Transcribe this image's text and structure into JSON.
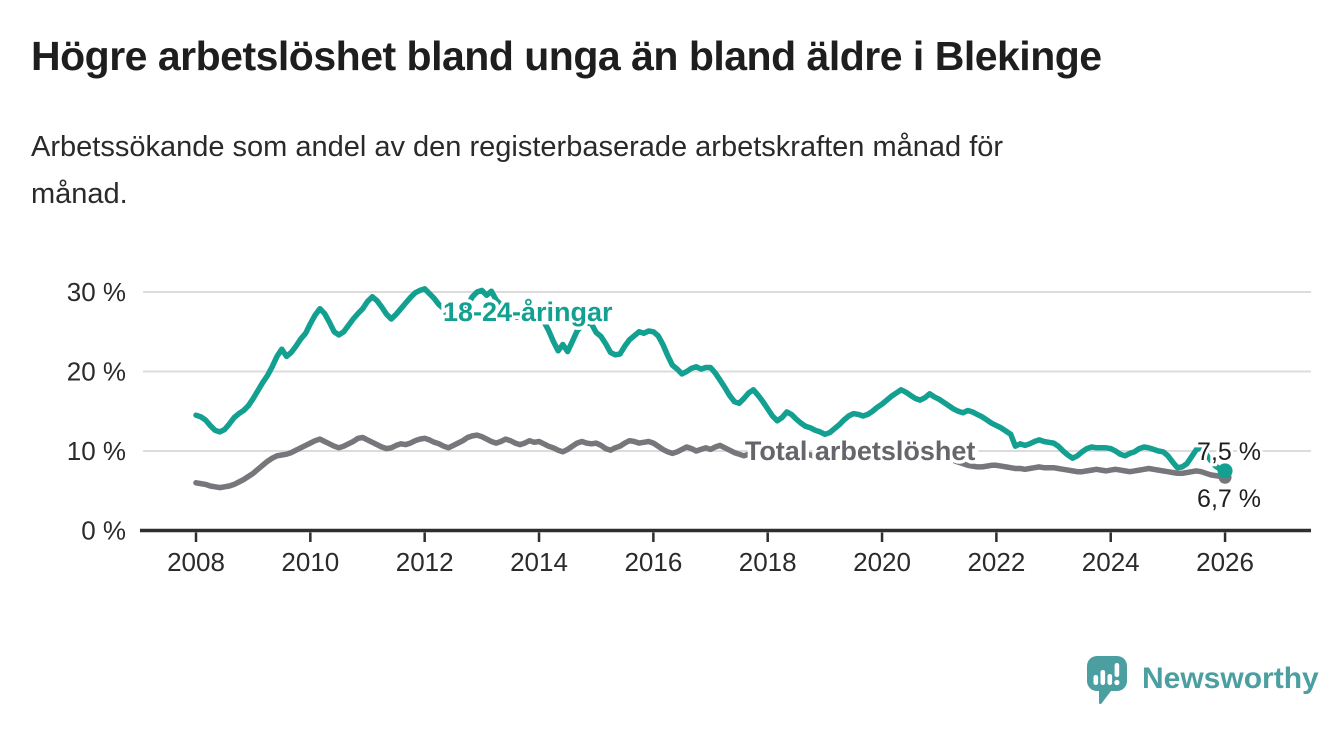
{
  "header": {
    "title": "Högre arbetslöshet bland unga än bland äldre i Blekinge",
    "subtitle": "Arbetssökande som andel av den registerbaserade arbetskraften månad för\nmånad."
  },
  "branding": {
    "name": "Newsworthy",
    "logo_icon": "speech-bubble-bar-chart-icon",
    "color": "#4b9fa0"
  },
  "colors": {
    "youth_line": "#13a091",
    "total_line": "#77777b",
    "total_label": "#65656b",
    "grid": "#dcdcdc",
    "axis": "#2e2e2e",
    "end_label": "#1f1f1f",
    "background": "#ffffff"
  },
  "chart_data": {
    "type": "line",
    "title": "Högre arbetslöshet bland unga än bland äldre i Blekinge",
    "xlabel": "",
    "ylabel": "",
    "x_start": 2008.0,
    "x_step_months": 1,
    "xlim": [
      2006.6,
      2027.6
    ],
    "ylim": [
      0,
      32
    ],
    "grid": "horizontal",
    "legend": "inline-labels",
    "xticks": [
      2008,
      2010,
      2012,
      2014,
      2016,
      2018,
      2020,
      2022,
      2024,
      2026
    ],
    "yticks": [
      {
        "value": 0,
        "label": "0 %"
      },
      {
        "value": 10,
        "label": "10 %"
      },
      {
        "value": 20,
        "label": "20 %"
      },
      {
        "value": 30,
        "label": "30 %"
      }
    ],
    "series": [
      {
        "id": "youth",
        "name": "18-24-åringar",
        "color": "#13a091",
        "label_color": "#13a091",
        "end_label": "7,5 %",
        "end_label_offset": {
          "dx": -28,
          "dy": -11
        },
        "end_dot_radius": 7.5,
        "inline_label": {
          "x": 2012.32,
          "y": 26.35
        },
        "values": [
          14.5,
          14.3,
          13.9,
          13.2,
          12.6,
          12.4,
          12.7,
          13.4,
          14.2,
          14.7,
          15.1,
          15.7,
          16.6,
          17.6,
          18.6,
          19.5,
          20.6,
          21.9,
          22.8,
          21.9,
          22.4,
          23.2,
          24.1,
          24.8,
          26.0,
          27.1,
          27.9,
          27.3,
          26.2,
          25.0,
          24.6,
          25.0,
          25.8,
          26.6,
          27.3,
          27.9,
          28.8,
          29.4,
          28.9,
          28.1,
          27.2,
          26.6,
          27.2,
          27.9,
          28.6,
          29.3,
          29.9,
          30.2,
          30.4,
          29.8,
          29.2,
          28.4,
          27.9,
          26.6,
          26.3,
          26.9,
          27.5,
          28.3,
          29.4,
          30.0,
          30.2,
          29.6,
          30.1,
          29.0,
          28.4,
          27.7,
          27.2,
          26.8,
          26.9,
          27.3,
          27.0,
          26.7,
          27.0,
          26.3,
          25.2,
          23.8,
          22.6,
          23.4,
          22.5,
          23.8,
          25.1,
          25.8,
          26.1,
          26.0,
          24.9,
          24.4,
          23.5,
          22.4,
          22.1,
          22.2,
          23.2,
          24.0,
          24.5,
          25.0,
          24.8,
          25.1,
          25.0,
          24.5,
          23.4,
          22.0,
          20.8,
          20.3,
          19.7,
          20.0,
          20.4,
          20.6,
          20.3,
          20.5,
          20.5,
          19.8,
          18.9,
          18.0,
          17.0,
          16.2,
          16.0,
          16.6,
          17.3,
          17.7,
          17.0,
          16.2,
          15.3,
          14.4,
          13.8,
          14.2,
          14.9,
          14.6,
          14.0,
          13.5,
          13.1,
          12.9,
          12.6,
          12.4,
          12.1,
          12.3,
          12.8,
          13.3,
          13.9,
          14.4,
          14.7,
          14.6,
          14.4,
          14.6,
          15.0,
          15.5,
          15.9,
          16.4,
          16.9,
          17.3,
          17.7,
          17.4,
          17.0,
          16.6,
          16.4,
          16.7,
          17.2,
          16.8,
          16.5,
          16.1,
          15.7,
          15.3,
          15.0,
          14.8,
          15.1,
          14.9,
          14.6,
          14.3,
          13.9,
          13.5,
          13.2,
          12.9,
          12.5,
          12.1,
          10.6,
          10.9,
          10.7,
          10.9,
          11.2,
          11.4,
          11.2,
          11.1,
          11.0,
          10.6,
          10.0,
          9.5,
          9.1,
          9.4,
          9.9,
          10.3,
          10.5,
          10.4,
          10.4,
          10.4,
          10.3,
          10.0,
          9.6,
          9.4,
          9.7,
          9.9,
          10.3,
          10.5,
          10.4,
          10.2,
          10.0,
          9.9,
          9.4,
          8.6,
          7.9,
          8.0,
          8.4,
          9.3,
          10.2,
          10.4,
          9.6,
          8.8,
          8.1,
          7.7,
          7.5
        ]
      },
      {
        "id": "total",
        "name": "Total arbetslöshet",
        "color": "#77777b",
        "label_color": "#65656b",
        "end_label": "6,7 %",
        "end_label_offset": {
          "dx": -28,
          "dy": 30
        },
        "end_dot_radius": 6.5,
        "inline_label": {
          "x": 2017.6,
          "y": 8.87
        },
        "values": [
          6.0,
          5.9,
          5.8,
          5.6,
          5.5,
          5.4,
          5.5,
          5.6,
          5.8,
          6.1,
          6.4,
          6.8,
          7.2,
          7.7,
          8.2,
          8.7,
          9.1,
          9.4,
          9.5,
          9.6,
          9.8,
          10.1,
          10.4,
          10.7,
          11.0,
          11.3,
          11.5,
          11.2,
          10.9,
          10.6,
          10.4,
          10.6,
          10.9,
          11.2,
          11.6,
          11.7,
          11.4,
          11.1,
          10.8,
          10.5,
          10.3,
          10.4,
          10.7,
          10.9,
          10.8,
          11.0,
          11.3,
          11.5,
          11.6,
          11.4,
          11.1,
          10.9,
          10.6,
          10.4,
          10.7,
          11.0,
          11.3,
          11.7,
          11.9,
          12.0,
          11.8,
          11.5,
          11.2,
          11.0,
          11.2,
          11.5,
          11.3,
          11.0,
          10.8,
          11.0,
          11.3,
          11.1,
          11.2,
          10.9,
          10.6,
          10.4,
          10.1,
          9.9,
          10.2,
          10.6,
          11.0,
          11.2,
          11.0,
          10.9,
          11.0,
          10.7,
          10.3,
          10.1,
          10.4,
          10.6,
          11.0,
          11.3,
          11.2,
          11.0,
          11.1,
          11.2,
          11.0,
          10.6,
          10.2,
          9.9,
          9.7,
          9.9,
          10.2,
          10.5,
          10.3,
          10.0,
          10.2,
          10.4,
          10.2,
          10.5,
          10.7,
          10.4,
          10.1,
          9.8,
          9.6,
          9.4,
          9.6,
          9.9,
          10.1,
          10.3,
          10.1,
          9.8,
          9.5,
          9.3,
          9.1,
          9.0,
          9.2,
          9.4,
          9.6,
          9.5,
          9.3,
          9.1,
          9.0,
          8.9,
          8.8,
          8.9,
          9.0,
          9.2,
          9.3,
          9.4,
          9.3,
          9.2,
          9.3,
          9.4,
          9.6,
          9.8,
          10.2,
          10.5,
          10.7,
          10.8,
          10.7,
          10.5,
          10.3,
          10.1,
          9.9,
          9.8,
          9.6,
          9.4,
          9.1,
          8.8,
          8.6,
          8.4,
          8.2,
          8.1,
          8.0,
          8.0,
          8.1,
          8.2,
          8.2,
          8.1,
          8.0,
          7.9,
          7.8,
          7.8,
          7.7,
          7.8,
          7.9,
          8.0,
          7.9,
          7.9,
          7.9,
          7.8,
          7.7,
          7.6,
          7.5,
          7.4,
          7.4,
          7.5,
          7.6,
          7.7,
          7.6,
          7.5,
          7.6,
          7.7,
          7.6,
          7.5,
          7.4,
          7.5,
          7.6,
          7.7,
          7.8,
          7.7,
          7.6,
          7.5,
          7.4,
          7.3,
          7.2,
          7.2,
          7.3,
          7.4,
          7.5,
          7.4,
          7.2,
          7.0,
          6.9,
          6.8,
          6.7
        ]
      }
    ]
  }
}
